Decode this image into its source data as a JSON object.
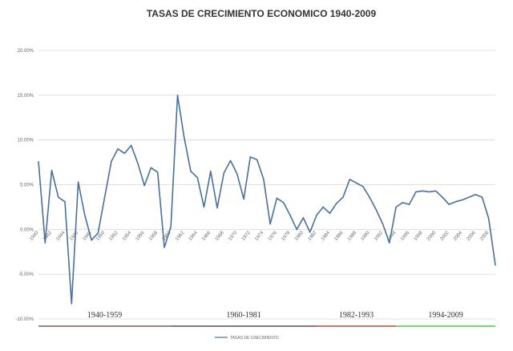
{
  "chart_data": {
    "type": "line",
    "title": "TASAS DE CRECIMIENTO ECONOMICO 1940-2009",
    "xlabel": "",
    "ylabel": "",
    "ylim": [
      -10,
      20
    ],
    "y_ticks": [
      "20.00%",
      "15.00%",
      "10.00%",
      "5.00%",
      "0.00%",
      "-5.00%",
      "-10.00%"
    ],
    "y_tick_values": [
      20,
      15,
      10,
      5,
      0,
      -5,
      -10
    ],
    "x_tick_labels": [
      "1940",
      "1942",
      "1944",
      "1946",
      "1948",
      "1950",
      "1952",
      "1954",
      "1956",
      "1958",
      "1960",
      "1962",
      "1964",
      "1966",
      "1968",
      "1970",
      "1972",
      "1974",
      "1976",
      "1978",
      "1980",
      "1982",
      "1984",
      "1986",
      "1988",
      "1990",
      "1992",
      "1994",
      "1996",
      "1998",
      "2000",
      "2002",
      "2004",
      "2006",
      "2008"
    ],
    "x_tick_values": [
      1940,
      1942,
      1944,
      1946,
      1948,
      1950,
      1952,
      1954,
      1956,
      1958,
      1960,
      1962,
      1964,
      1966,
      1968,
      1970,
      1972,
      1974,
      1976,
      1978,
      1980,
      1982,
      1984,
      1986,
      1988,
      1990,
      1992,
      1994,
      1996,
      1998,
      2000,
      2002,
      2004,
      2006,
      2008
    ],
    "grid": true,
    "legend_position": "bottom",
    "series": [
      {
        "name": "TASAS DE CRECIMIENTO",
        "color": "#4a6f9c",
        "x": [
          1940,
          1941,
          1942,
          1943,
          1944,
          1945,
          1946,
          1947,
          1948,
          1949,
          1950,
          1951,
          1952,
          1953,
          1954,
          1955,
          1956,
          1957,
          1958,
          1959,
          1960,
          1961,
          1962,
          1963,
          1964,
          1965,
          1966,
          1967,
          1968,
          1969,
          1970,
          1971,
          1972,
          1973,
          1974,
          1975,
          1976,
          1977,
          1978,
          1979,
          1980,
          1981,
          1982,
          1983,
          1984,
          1985,
          1986,
          1987,
          1988,
          1989,
          1990,
          1991,
          1992,
          1993,
          1994,
          1995,
          1996,
          1997,
          1998,
          1999,
          2000,
          2001,
          2002,
          2003,
          2004,
          2005,
          2006,
          2007,
          2008,
          2009
        ],
        "y": [
          7.6,
          -1.5,
          6.6,
          3.6,
          3.1,
          -8.3,
          5.3,
          1.6,
          -1.2,
          -0.4,
          3.6,
          7.6,
          9.0,
          8.5,
          9.4,
          7.4,
          4.9,
          6.9,
          6.4,
          -2.0,
          0.3,
          15.0,
          10.3,
          6.5,
          5.8,
          2.5,
          6.5,
          2.4,
          6.3,
          7.7,
          6.2,
          3.4,
          8.1,
          7.8,
          5.6,
          0.6,
          3.5,
          3.0,
          1.6,
          0.0,
          1.3,
          -0.3,
          1.6,
          2.5,
          1.8,
          2.9,
          3.6,
          5.6,
          5.2,
          4.8,
          3.6,
          2.2,
          0.6,
          -1.5,
          2.5,
          3.0,
          2.8,
          4.2,
          4.3,
          4.2,
          4.3,
          3.6,
          2.8,
          3.1,
          3.3,
          3.6,
          3.9,
          3.6,
          1.2,
          -4.0
        ]
      }
    ],
    "periods": [
      {
        "label": "1940-1959",
        "from": 1940,
        "to": 1959,
        "color": "#7a5a5a"
      },
      {
        "label": "1960-1981",
        "from": 1960,
        "to": 1981,
        "color": "#5a4a4a"
      },
      {
        "label": "1982-1993",
        "from": 1982,
        "to": 1993,
        "color": "#c04040"
      },
      {
        "label": "1994-2009",
        "from": 1994,
        "to": 2009,
        "color": "#3ecf3e"
      }
    ]
  }
}
